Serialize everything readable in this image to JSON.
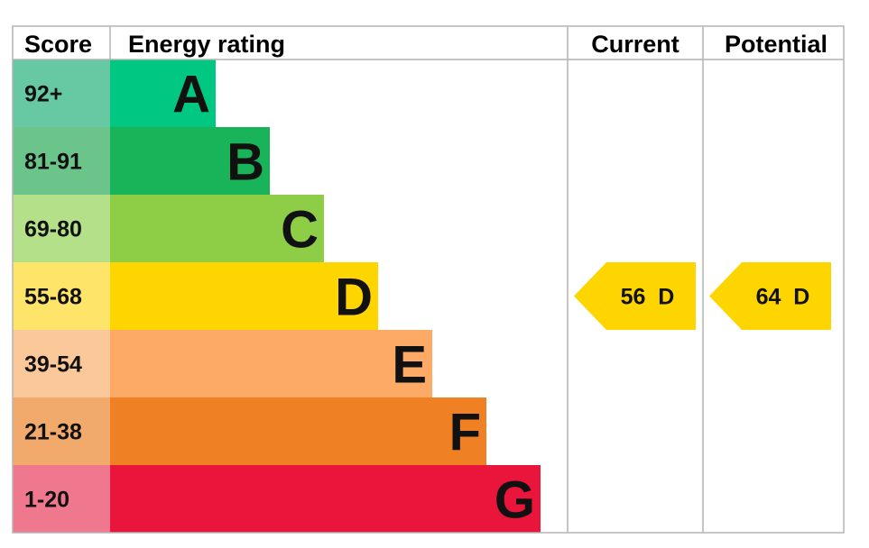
{
  "headers": {
    "score": "Score",
    "energy_rating": "Energy rating",
    "current": "Current",
    "potential": "Potential"
  },
  "chart_data": {
    "type": "bar",
    "categories": [
      "A",
      "B",
      "C",
      "D",
      "E",
      "F",
      "G"
    ],
    "score_ranges": [
      "92+",
      "81-91",
      "69-80",
      "55-68",
      "39-54",
      "21-38",
      "1-20"
    ],
    "bar_colors": [
      "#00c781",
      "#19b459",
      "#8dce46",
      "#ffd500",
      "#fcaa65",
      "#ef8023",
      "#e9153b"
    ],
    "score_colors": [
      "#66c9a4",
      "#6bc48a",
      "#b4e08a",
      "#ffe46a",
      "#fbc89a",
      "#f2aa6c",
      "#f0788e"
    ],
    "current": {
      "value": 56,
      "band": "D",
      "label": "56  D"
    },
    "potential": {
      "value": 64,
      "band": "D",
      "label": "64  D"
    },
    "arrow_color": "#ffd500"
  }
}
